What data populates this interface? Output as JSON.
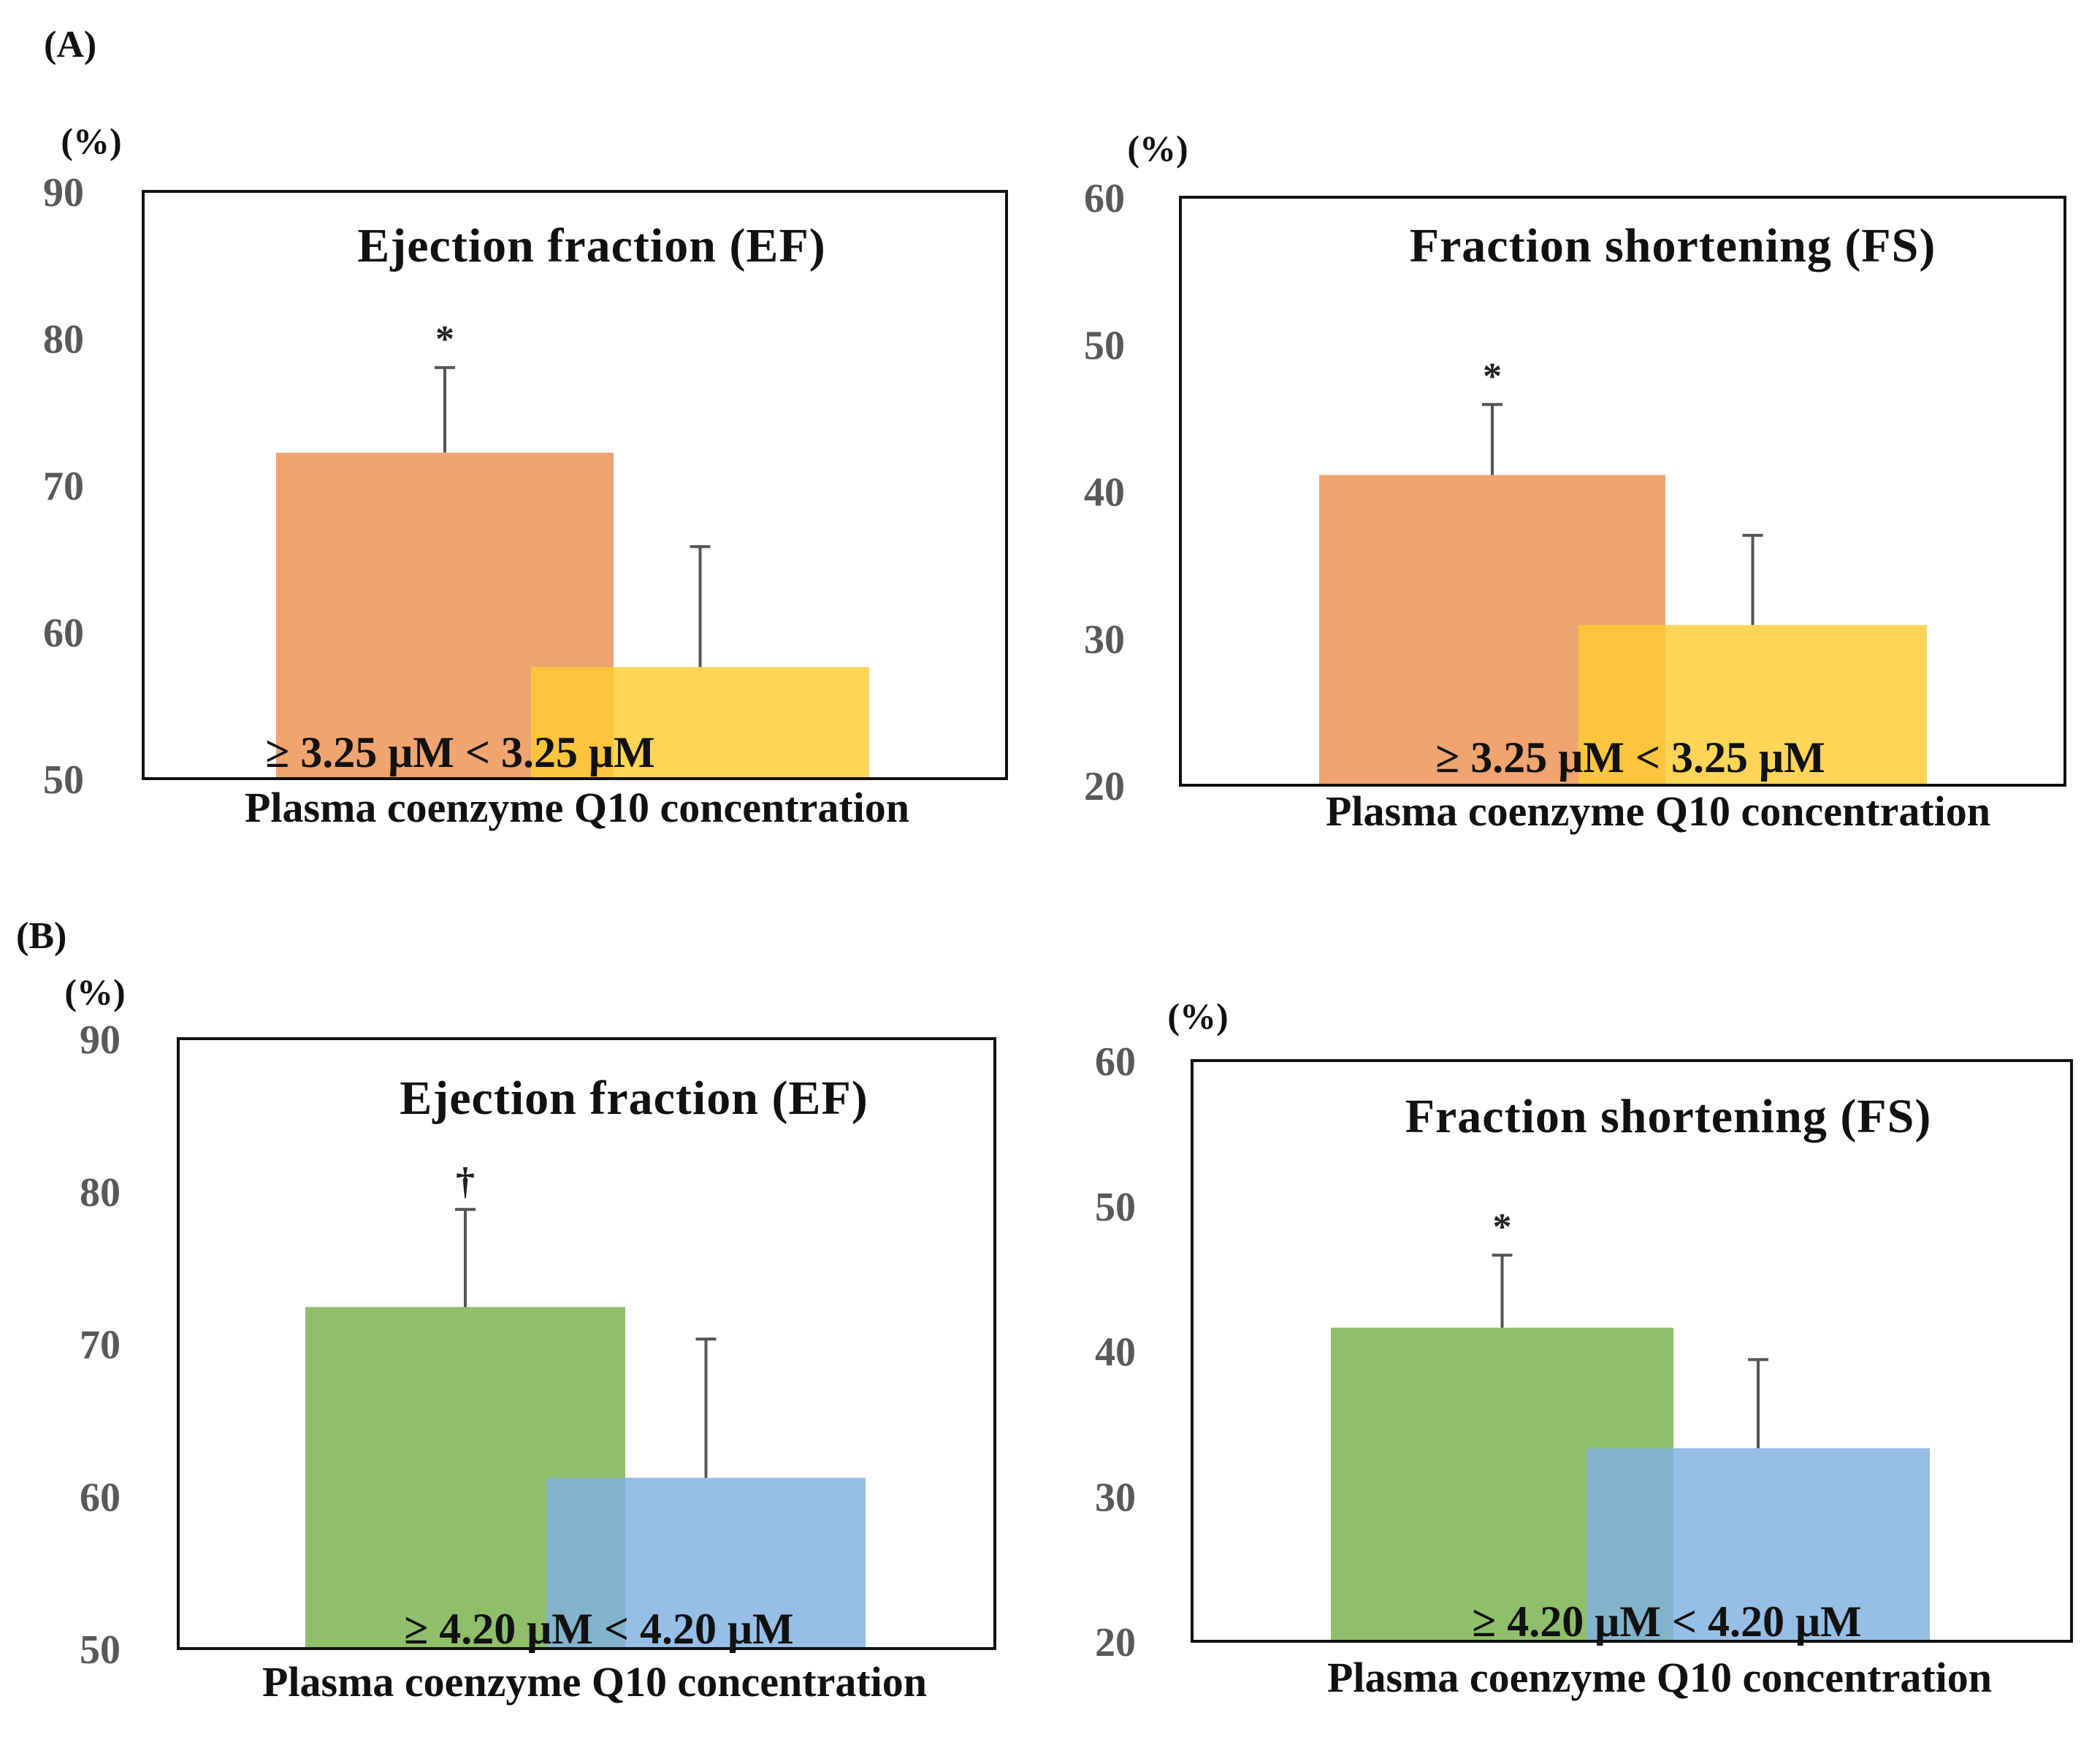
{
  "panels": [
    {
      "label": "(A)"
    },
    {
      "label": "(B)"
    }
  ],
  "chart_data": [
    {
      "type": "bar",
      "panel": "(A)",
      "title": "Ejection fraction (EF)",
      "ylabel": "(%)",
      "xlabel": "Plasma coenzyme Q10 concentration",
      "ylim": [
        50,
        90
      ],
      "yticks": [
        "50",
        "60",
        "70",
        "80",
        "90"
      ],
      "categories": [
        "≥ 3.25 μM",
        "< 3.25 μM"
      ],
      "values": [
        72.2,
        57.6
      ],
      "errors": [
        5.8,
        8.2
      ],
      "annotations": [
        "*",
        ""
      ],
      "colors": [
        "#f0a470",
        "#ffcc33"
      ]
    },
    {
      "type": "bar",
      "panel": "(A)",
      "title": "Fraction shortening (FS)",
      "ylabel": "(%)",
      "xlabel": "Plasma coenzyme Q10 concentration",
      "ylim": [
        20,
        60
      ],
      "yticks": [
        "20",
        "30",
        "40",
        "50",
        "60"
      ],
      "categories": [
        "≥ 3.25 μM",
        "< 3.25 μM"
      ],
      "values": [
        41.1,
        30.9
      ],
      "errors": [
        4.8,
        6.1
      ],
      "annotations": [
        "*",
        ""
      ],
      "colors": [
        "#f0a470",
        "#ffcc33"
      ]
    },
    {
      "type": "bar",
      "panel": "(B)",
      "title": "Ejection fraction (EF)",
      "ylabel": "(%)",
      "xlabel": "Plasma coenzyme Q10 concentration",
      "ylim": [
        50,
        90
      ],
      "yticks": [
        "50",
        "60",
        "70",
        "80",
        "90"
      ],
      "categories": [
        "≥ 4.20 μM",
        "< 4.20 μM"
      ],
      "values": [
        72.4,
        61.2
      ],
      "errors": [
        6.4,
        9.1
      ],
      "annotations": [
        "†",
        ""
      ],
      "colors": [
        "#8fbf6a",
        "#80b0e0"
      ]
    },
    {
      "type": "bar",
      "panel": "(B)",
      "title": "Fraction shortening (FS)",
      "ylabel": "(%)",
      "xlabel": "Plasma coenzyme Q10 concentration",
      "ylim": [
        20,
        60
      ],
      "yticks": [
        "20",
        "30",
        "40",
        "50",
        "60"
      ],
      "categories": [
        "≥ 4.20 μM",
        "< 4.20 μM"
      ],
      "values": [
        41.6,
        33.3
      ],
      "errors": [
        5.0,
        6.1
      ],
      "annotations": [
        "*",
        ""
      ],
      "colors": [
        "#8fbf6a",
        "#80b0e0"
      ]
    }
  ]
}
